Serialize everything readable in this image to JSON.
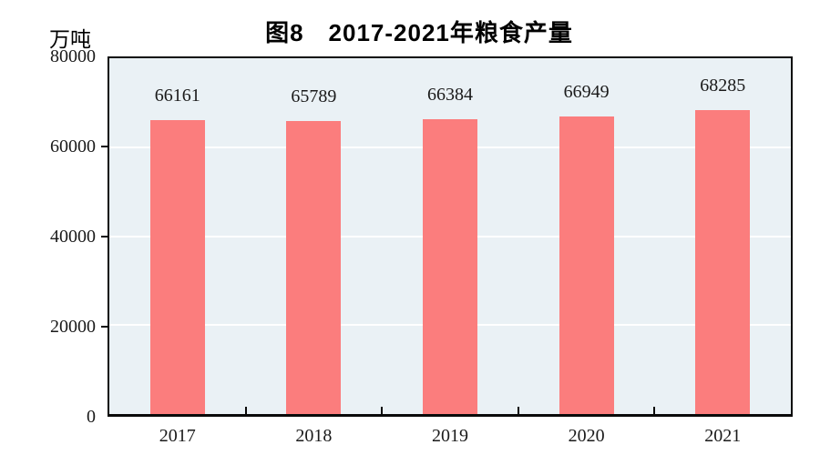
{
  "figure": {
    "title": "图8　2017-2021年粮食产量",
    "y_unit": "万吨"
  },
  "chart_data": {
    "type": "bar",
    "title": "图8　2017-2021年粮食产量",
    "categories": [
      "2017",
      "2018",
      "2019",
      "2020",
      "2021"
    ],
    "values": [
      66161,
      65789,
      66384,
      66949,
      68285
    ],
    "xlabel": "",
    "ylabel": "万吨",
    "ylim": [
      0,
      80000
    ],
    "yticks": [
      0,
      20000,
      40000,
      60000,
      80000
    ],
    "value_labels_shown": true,
    "grid": "horizontal-white-lines",
    "legend_position": "none",
    "colors": {
      "bar": "#FB7D7D",
      "plot_background": "#EAF1F5",
      "gridline": "#FFFFFF",
      "axis": "#0A0A0A",
      "text": "#1A1A1A"
    }
  }
}
